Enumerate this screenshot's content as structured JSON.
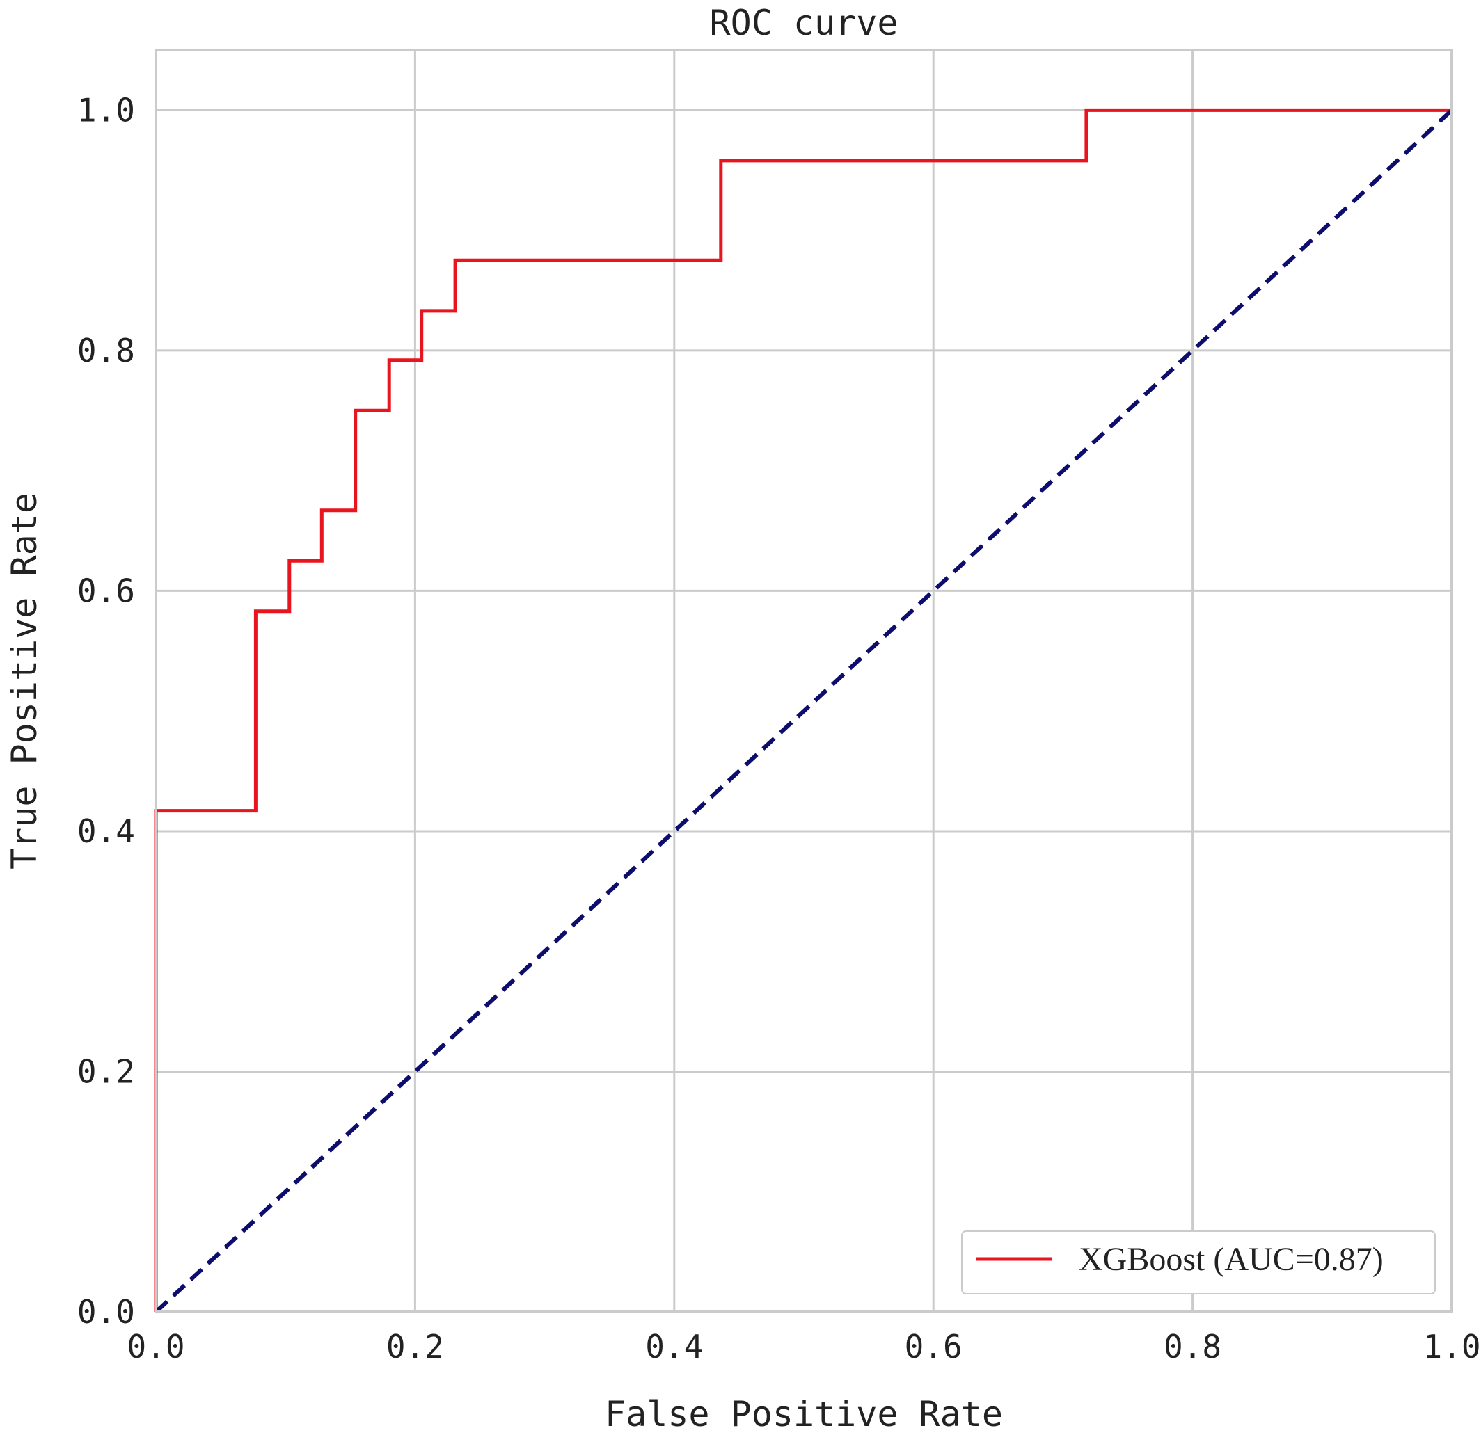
{
  "chart_data": {
    "type": "line",
    "title": "ROC curve",
    "xlabel": "False Positive Rate",
    "ylabel": "True Positive Rate",
    "xlim": [
      0.0,
      1.0
    ],
    "ylim": [
      0.0,
      1.05
    ],
    "x_ticks": [
      0.0,
      0.2,
      0.4,
      0.6,
      0.8,
      1.0
    ],
    "y_ticks": [
      0.0,
      0.2,
      0.4,
      0.6,
      0.8,
      1.0
    ],
    "x_tick_labels": [
      "0.0",
      "0.2",
      "0.4",
      "0.6",
      "0.8",
      "1.0"
    ],
    "y_tick_labels": [
      "0.0",
      "0.2",
      "0.4",
      "0.6",
      "0.8",
      "1.0"
    ],
    "grid": true,
    "legend_position": "lower-right",
    "series": [
      {
        "name": "XGBoost (AUC=0.87)",
        "style": "solid",
        "color": "#e8141e",
        "x": [
          0.0,
          0.0,
          0.077,
          0.077,
          0.103,
          0.103,
          0.128,
          0.128,
          0.154,
          0.154,
          0.18,
          0.18,
          0.205,
          0.205,
          0.231,
          0.231,
          0.436,
          0.436,
          0.718,
          0.718,
          1.0
        ],
        "y": [
          0.0,
          0.417,
          0.417,
          0.583,
          0.583,
          0.625,
          0.625,
          0.667,
          0.667,
          0.75,
          0.75,
          0.792,
          0.792,
          0.833,
          0.833,
          0.875,
          0.875,
          0.958,
          0.958,
          1.0,
          1.0
        ]
      },
      {
        "style": "dashed",
        "color": "#0d0d6e",
        "x": [
          0.0,
          1.0
        ],
        "y": [
          0.0,
          1.0
        ]
      }
    ]
  },
  "colors": {
    "grid": "#cbcbcb",
    "frame": "#cbcbcb",
    "text": "#222222"
  }
}
